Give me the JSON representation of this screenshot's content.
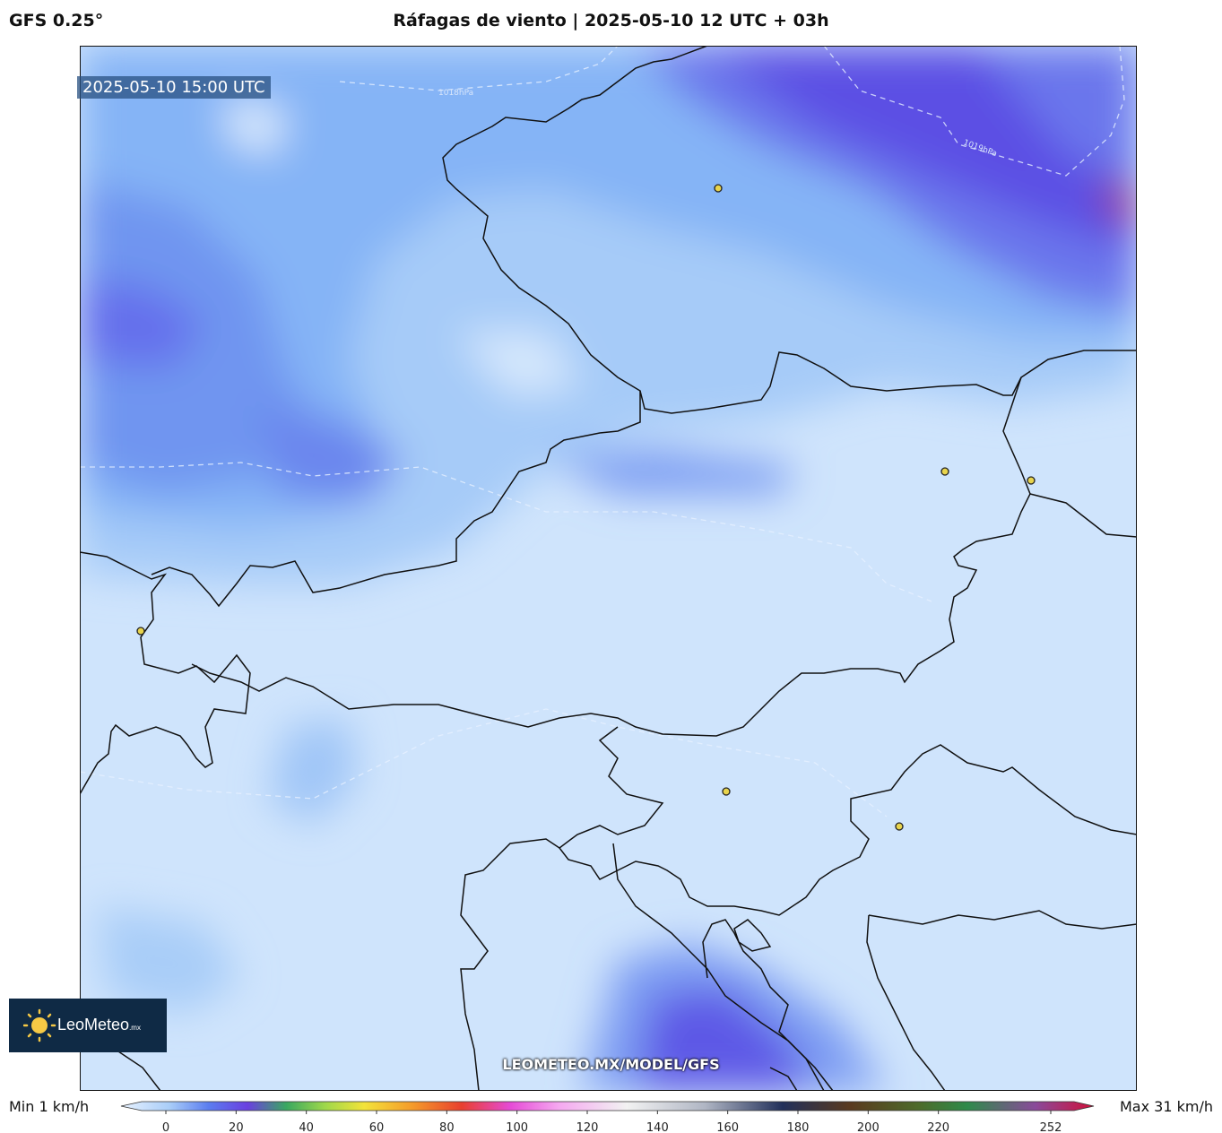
{
  "header": {
    "model": "GFS 0.25°",
    "title": "Ráfagas de viento | 2025-05-10 12 UTC + 03h"
  },
  "map": {
    "valid_time": "2025-05-10 15:00 UTC",
    "isobar_labels": [
      "1018hPa",
      "1019hPa"
    ],
    "watermark": "LEOMETEO.MX/MODEL/GFS"
  },
  "logo": {
    "brand": "LeoMeteo",
    "tld": ".mx"
  },
  "colorbar": {
    "min_label": "Min 1 km/h",
    "max_label": "Max 31 km/h",
    "lim": [
      0,
      252
    ],
    "ticks": [
      0,
      20,
      40,
      60,
      80,
      100,
      120,
      140,
      160,
      180,
      200,
      220,
      252
    ]
  }
}
